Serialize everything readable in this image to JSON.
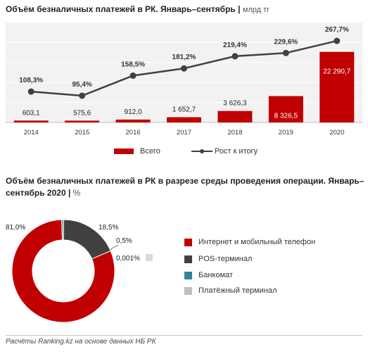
{
  "chart_data": [
    {
      "type": "bar",
      "title": "Объём безналичных платежей в РК. Январь–сентябрь",
      "unit": "млрд тг",
      "categories": [
        "2014",
        "2015",
        "2016",
        "2017",
        "2018",
        "2019",
        "2020"
      ],
      "series": [
        {
          "name": "Всего",
          "type": "bar",
          "values": [
            603.1,
            575.6,
            912.0,
            1652.7,
            3626.3,
            8326.5,
            22290.7
          ],
          "labels": [
            "603,1",
            "575,6",
            "912,0",
            "1 652,7",
            "3 626,3",
            "8 326,5",
            "22 290,7"
          ],
          "color": "#c00000"
        },
        {
          "name": "Рост к итогу",
          "type": "line",
          "values": [
            108.3,
            95.4,
            158.5,
            181.2,
            219.4,
            229.6,
            267.7
          ],
          "labels": [
            "108,3%",
            "95,4%",
            "158,5%",
            "181,2%",
            "219,4%",
            "229,6%",
            "267,7%"
          ],
          "color": "#404040"
        }
      ],
      "grid": true,
      "legend": "bottom"
    },
    {
      "type": "pie",
      "title": "Объём безналичных платежей в РК в разрезе среды проведения операции. Январь–сентябрь  2020",
      "unit": "%",
      "categories": [
        "Интернет и мобильный телефон",
        "POS-терминал",
        "Банкомат",
        "Платёжный терминал"
      ],
      "values": [
        81.0,
        18.5,
        0.5,
        0.001
      ],
      "labels": [
        "81,0%",
        "18,5%",
        "0,5%",
        "0,001%"
      ],
      "colors": [
        "#c00000",
        "#404040",
        "#31849b",
        "#bfbfbf"
      ],
      "legend": "right"
    }
  ],
  "footer": "Расчёты Ranking.kz на основе данных НБ РК"
}
